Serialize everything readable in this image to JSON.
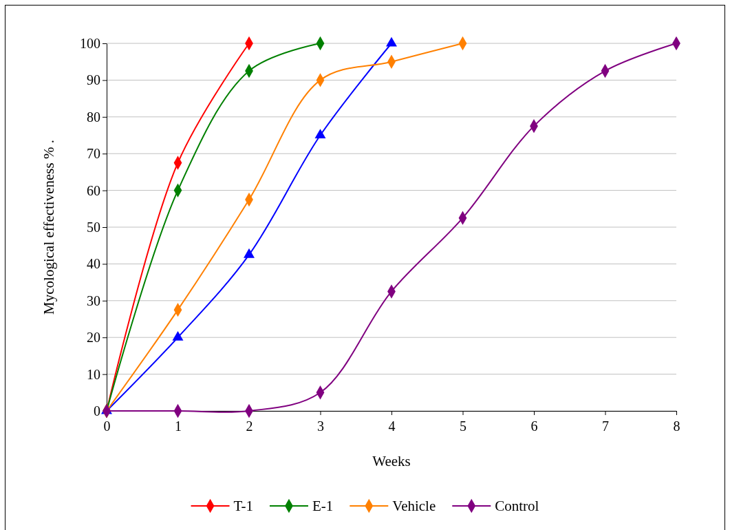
{
  "chart_data": {
    "type": "line",
    "xlabel": "Weeks",
    "ylabel": "Mycological effectiveness % .",
    "xlim": [
      0,
      8
    ],
    "xticks": [
      0,
      1,
      2,
      3,
      4,
      5,
      6,
      7,
      8
    ],
    "ylim": [
      0,
      100
    ],
    "yticks": [
      0,
      10,
      20,
      30,
      40,
      50,
      60,
      70,
      80,
      90,
      100
    ],
    "grid": "y",
    "legend": "bottom",
    "line_style": "solid",
    "series": [
      {
        "name": "T-1",
        "color": "#ff0000",
        "marker": "diamond",
        "x": [
          0,
          1,
          2
        ],
        "values": [
          0,
          67.5,
          100
        ]
      },
      {
        "name": "E-1",
        "color": "#008000",
        "marker": "diamond",
        "x": [
          0,
          1,
          2,
          3
        ],
        "values": [
          0,
          60,
          92.5,
          100
        ]
      },
      {
        "color": "#0000ff",
        "marker": "triangle",
        "x": [
          0,
          1,
          2,
          3,
          4
        ],
        "values": [
          0,
          20,
          42.5,
          75,
          100
        ]
      },
      {
        "name": "Vehicle",
        "color": "#ff8000",
        "marker": "diamond",
        "x": [
          0,
          1,
          2,
          3,
          4,
          5
        ],
        "values": [
          0,
          27.5,
          57.5,
          90,
          95,
          100
        ]
      },
      {
        "name": "Control",
        "color": "#800080",
        "marker": "diamond",
        "x": [
          0,
          1,
          2,
          3,
          4,
          5,
          6,
          7,
          8
        ],
        "values": [
          0,
          0,
          0,
          5,
          32.5,
          52.5,
          77.5,
          92.5,
          100
        ]
      }
    ]
  }
}
